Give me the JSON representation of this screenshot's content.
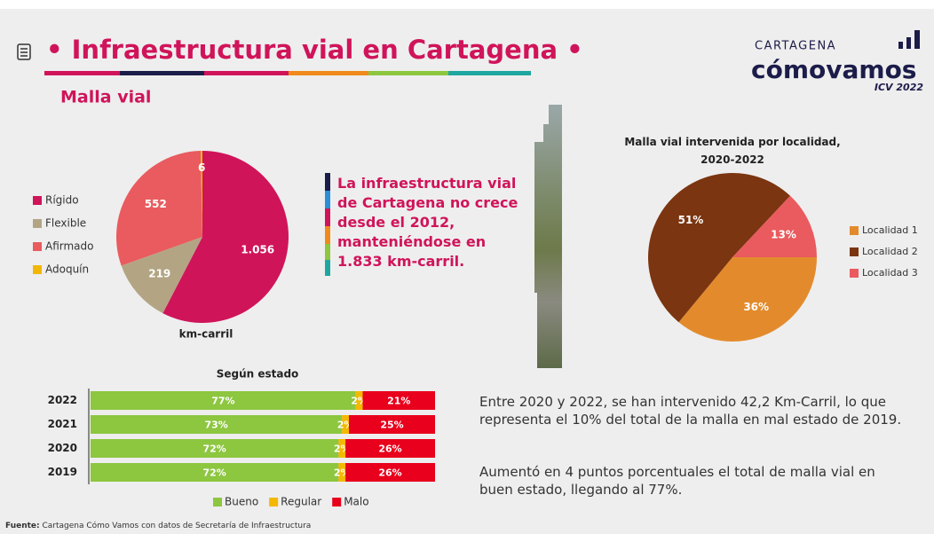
{
  "header": {
    "title": "• Infraestructura vial en Cartagena •",
    "subtitle": "Malla vial"
  },
  "logo": {
    "line1": "CARTAGENA",
    "line2": "cómovamos",
    "line3": "ICV 2022"
  },
  "callout": "La infraestructura vial de Cartagena no crece desde el 2012, manteniéndose en 1.833 km-carril.",
  "paragraphs": [
    "Entre 2020 y 2022, se han intervenido 42,2 Km-Carril, lo que representa el 10% del total de la malla en mal estado de 2019.",
    "Aumentó en 4 puntos porcentuales el total de malla vial en buen estado, llegando al 77%."
  ],
  "source": {
    "label": "Fuente:",
    "text": "Cartagena Cómo Vamos con datos de Secretaría de Infraestructura"
  },
  "chart_data": [
    {
      "type": "pie",
      "xlabel": "km-carril",
      "categories": [
        "Rígido",
        "Flexible",
        "Afirmado",
        "Adoquín"
      ],
      "values": [
        1056,
        219,
        552,
        6
      ],
      "value_labels": [
        "1.056",
        "219",
        "552",
        "6"
      ],
      "colors": [
        "#d0145a",
        "#b3a584",
        "#e95b5e",
        "#f2b705"
      ],
      "legend": "left"
    },
    {
      "type": "bar",
      "orientation": "horizontal",
      "stacked": true,
      "title": "Según estado",
      "categories": [
        "2022",
        "2021",
        "2020",
        "2019"
      ],
      "series": [
        {
          "name": "Bueno",
          "color": "#8dc63f",
          "values": [
            77,
            73,
            72,
            72
          ],
          "value_labels": [
            "77%",
            "73%",
            "72%",
            "72%"
          ]
        },
        {
          "name": "Regular",
          "color": "#f5b800",
          "values": [
            2,
            2,
            2,
            2
          ],
          "value_labels": [
            "2%",
            "2%",
            "2%",
            "2%"
          ]
        },
        {
          "name": "Malo",
          "color": "#e8001c",
          "values": [
            21,
            25,
            26,
            26
          ],
          "value_labels": [
            "21%",
            "25%",
            "26%",
            "26%"
          ]
        }
      ],
      "legend": "bottom"
    },
    {
      "type": "pie",
      "title": "Malla vial intervenida por localidad, 2020-2022",
      "categories": [
        "Localidad 1",
        "Localidad 2",
        "Localidad 3"
      ],
      "values": [
        36,
        51,
        13
      ],
      "value_labels": [
        "36%",
        "51%",
        "13%"
      ],
      "colors": [
        "#e38b2c",
        "#7b3510",
        "#e95b5e"
      ],
      "legend": "right"
    }
  ]
}
